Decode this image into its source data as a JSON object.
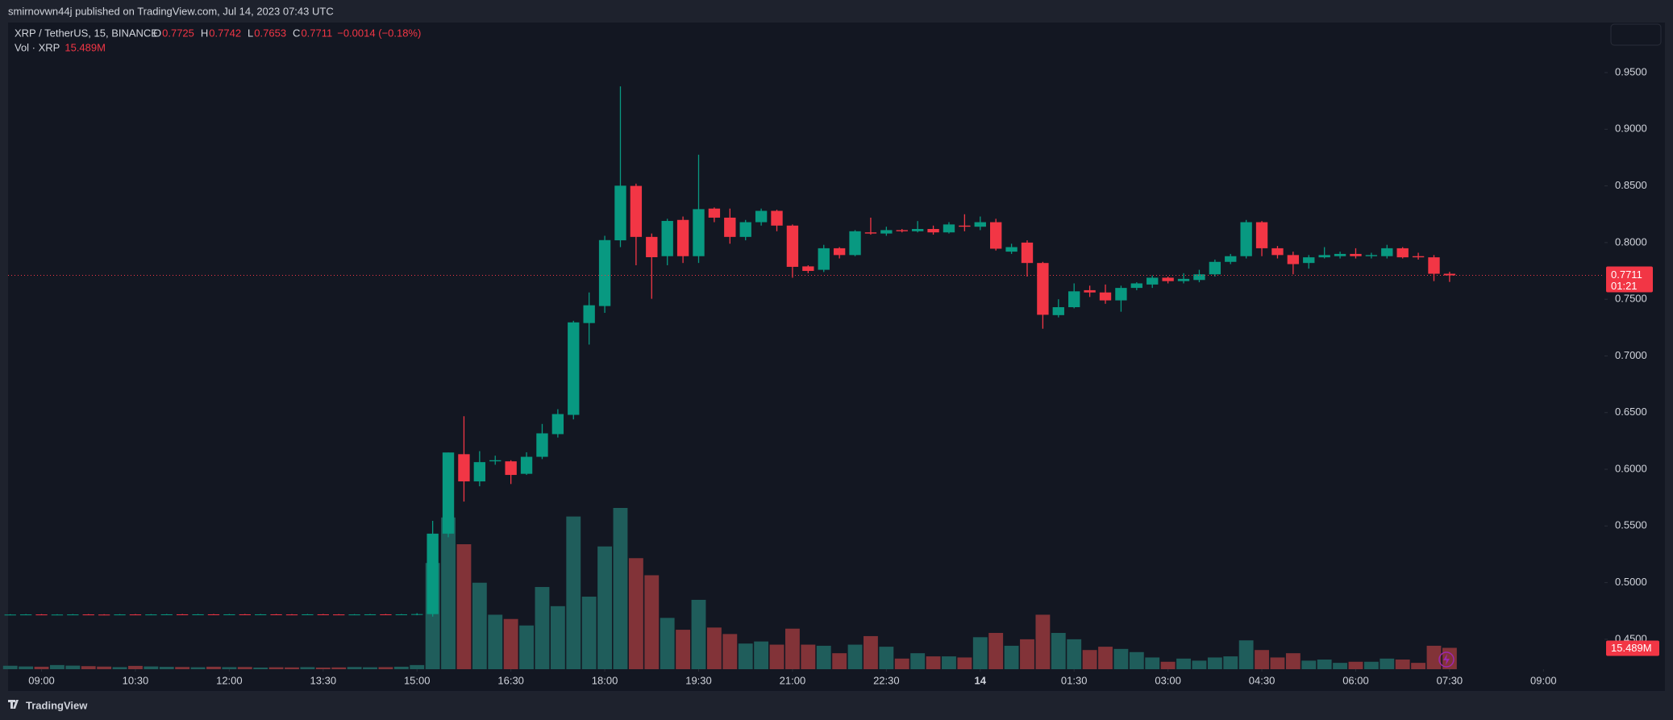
{
  "header": {
    "publisher": "smirnovwn44j published on TradingView.com, Jul 14, 2023 07:43 UTC"
  },
  "footer": {
    "brand": "TradingView"
  },
  "chart_data": {
    "type": "candlestick",
    "symbol": "XRP / TetherUS, 15, BINANCE",
    "ohlc_letters": [
      "O",
      "H",
      "L",
      "C"
    ],
    "change": "−0.0014 (−0.18%)",
    "volume_title": "Vol · XRP",
    "volume_label": "15.489M",
    "countdown": "01:21",
    "up_color": "#089981",
    "down_color": "#f23645",
    "volume_up_color": "#1f5d5b",
    "volume_down_color": "#823338",
    "open": [
      0.4717,
      0.4718,
      0.4719,
      0.4717,
      0.4718,
      0.4719,
      0.4718,
      0.4717,
      0.4719,
      0.4718,
      0.4719,
      0.472,
      0.4719,
      0.472,
      0.4719,
      0.472,
      0.4718,
      0.472,
      0.4719,
      0.4718,
      0.472,
      0.4719,
      0.4718,
      0.4719,
      0.472,
      0.4718,
      0.472,
      0.4722,
      0.5432,
      0.6133,
      0.5893,
      0.607,
      0.607,
      0.596,
      0.611,
      0.631,
      0.648,
      0.729,
      0.744,
      0.802,
      0.85,
      0.805,
      0.788,
      0.82,
      0.788,
      0.83,
      0.822,
      0.805,
      0.818,
      0.828,
      0.815,
      0.779,
      0.776,
      0.795,
      0.789,
      0.809,
      0.808,
      0.811,
      0.81,
      0.812,
      0.809,
      0.815,
      0.814,
      0.818,
      0.792,
      0.8,
      0.782,
      0.736,
      0.743,
      0.758,
      0.756,
      0.749,
      0.76,
      0.763,
      0.769,
      0.766,
      0.767,
      0.772,
      0.783,
      0.788,
      0.818,
      0.795,
      0.789,
      0.782,
      0.787,
      0.788,
      0.79,
      0.788,
      0.788,
      0.795,
      0.788,
      0.787,
      0.7725
    ],
    "high": [
      0.4721,
      0.4722,
      0.4722,
      0.4721,
      0.4722,
      0.4722,
      0.4721,
      0.4722,
      0.4722,
      0.4722,
      0.4723,
      0.4723,
      0.4723,
      0.4723,
      0.4723,
      0.4723,
      0.4723,
      0.4723,
      0.4722,
      0.4723,
      0.4723,
      0.4722,
      0.4722,
      0.4723,
      0.4723,
      0.4723,
      0.473,
      0.5545,
      0.6148,
      0.6468,
      0.616,
      0.612,
      0.608,
      0.615,
      0.64,
      0.653,
      0.731,
      0.756,
      0.806,
      0.9378,
      0.852,
      0.808,
      0.821,
      0.823,
      0.8775,
      0.831,
      0.83,
      0.82,
      0.83,
      0.829,
      0.816,
      0.78,
      0.798,
      0.796,
      0.811,
      0.822,
      0.814,
      0.812,
      0.819,
      0.815,
      0.818,
      0.825,
      0.823,
      0.821,
      0.799,
      0.802,
      0.783,
      0.75,
      0.764,
      0.762,
      0.763,
      0.762,
      0.765,
      0.771,
      0.77,
      0.773,
      0.776,
      0.785,
      0.79,
      0.82,
      0.819,
      0.797,
      0.792,
      0.789,
      0.796,
      0.792,
      0.795,
      0.791,
      0.798,
      0.796,
      0.791,
      0.789,
      0.7742
    ],
    "low": [
      0.4714,
      0.4715,
      0.4714,
      0.4714,
      0.4715,
      0.4715,
      0.4714,
      0.4714,
      0.4715,
      0.4715,
      0.4716,
      0.4716,
      0.4716,
      0.4716,
      0.4716,
      0.4715,
      0.4715,
      0.4716,
      0.4715,
      0.4715,
      0.4716,
      0.4715,
      0.4715,
      0.4716,
      0.4715,
      0.4715,
      0.4712,
      0.47,
      0.54,
      0.5715,
      0.585,
      0.604,
      0.587,
      0.595,
      0.609,
      0.628,
      0.644,
      0.71,
      0.738,
      0.796,
      0.78,
      0.7504,
      0.78,
      0.782,
      0.782,
      0.818,
      0.799,
      0.802,
      0.815,
      0.81,
      0.769,
      0.773,
      0.774,
      0.786,
      0.788,
      0.807,
      0.806,
      0.809,
      0.809,
      0.807,
      0.808,
      0.81,
      0.811,
      0.793,
      0.79,
      0.77,
      0.724,
      0.734,
      0.742,
      0.752,
      0.746,
      0.739,
      0.758,
      0.76,
      0.764,
      0.764,
      0.765,
      0.77,
      0.781,
      0.786,
      0.788,
      0.786,
      0.772,
      0.777,
      0.786,
      0.786,
      0.786,
      0.786,
      0.786,
      0.786,
      0.785,
      0.766,
      0.7653
    ],
    "close": [
      0.4718,
      0.4719,
      0.4717,
      0.4718,
      0.4719,
      0.4718,
      0.4717,
      0.4719,
      0.4718,
      0.4719,
      0.472,
      0.4719,
      0.472,
      0.4719,
      0.472,
      0.4718,
      0.472,
      0.4719,
      0.4718,
      0.472,
      0.4719,
      0.4718,
      0.4719,
      0.472,
      0.4718,
      0.472,
      0.4722,
      0.5432,
      0.6148,
      0.5893,
      0.6063,
      0.608,
      0.595,
      0.611,
      0.6317,
      0.6487,
      0.7296,
      0.7447,
      0.8022,
      0.8502,
      0.805,
      0.7871,
      0.8191,
      0.788,
      0.8295,
      0.822,
      0.805,
      0.818,
      0.828,
      0.815,
      0.7786,
      0.775,
      0.795,
      0.789,
      0.81,
      0.808,
      0.811,
      0.81,
      0.812,
      0.809,
      0.816,
      0.814,
      0.818,
      0.7946,
      0.796,
      0.782,
      0.7363,
      0.743,
      0.757,
      0.756,
      0.749,
      0.76,
      0.764,
      0.769,
      0.766,
      0.768,
      0.772,
      0.783,
      0.788,
      0.818,
      0.795,
      0.789,
      0.781,
      0.787,
      0.789,
      0.79,
      0.788,
      0.789,
      0.795,
      0.787,
      0.787,
      0.7725,
      0.7711
    ],
    "volume": [
      2.5,
      2,
      1.8,
      3,
      2.6,
      2.2,
      1.9,
      1.5,
      2.4,
      2,
      1.7,
      1.6,
      1.4,
      1.8,
      1.5,
      1.6,
      1.2,
      1.4,
      1.3,
      1.5,
      1.2,
      1.3,
      1.6,
      1.4,
      1.5,
      1.8,
      3,
      77,
      110,
      90.6,
      62.7,
      39.5,
      36.4,
      31.7,
      59.6,
      45.7,
      110.7,
      52.6,
      89,
      116.9,
      80.5,
      68.1,
      37.2,
      28.6,
      50.3,
      30.2,
      25.5,
      18.6,
      20.1,
      17.8,
      29.4,
      17.8,
      17,
      11.6,
      17.8,
      24,
      16.3,
      7.7,
      11.6,
      9.3,
      9.3,
      8.5,
      23.2,
      26.3,
      17,
      21.7,
      39.5,
      26.3,
      21.7,
      13.9,
      16.3,
      14.7,
      12.4,
      8.5,
      5.4,
      7.7,
      6.2,
      8.5,
      9.3,
      20.9,
      13.9,
      8.5,
      11.6,
      6.2,
      7,
      4.6,
      5.4,
      5.4,
      7.7,
      7,
      4.6,
      17,
      15.489
    ],
    "ylim": [
      0.4236,
      0.9934
    ],
    "yticks": [
      {
        "value": 0.45,
        "label": "0.4500"
      },
      {
        "value": 0.5,
        "label": "0.5000"
      },
      {
        "value": 0.55,
        "label": "0.5500"
      },
      {
        "value": 0.6,
        "label": "0.6000"
      },
      {
        "value": 0.65,
        "label": "0.6500"
      },
      {
        "value": 0.7,
        "label": "0.7000"
      },
      {
        "value": 0.75,
        "label": "0.7500"
      },
      {
        "value": 0.8,
        "label": "0.8000"
      },
      {
        "value": 0.85,
        "label": "0.8500"
      },
      {
        "value": 0.9,
        "label": "0.9000"
      },
      {
        "value": 0.95,
        "label": "0.9500"
      }
    ],
    "xlim": [
      -0.14,
      101.9
    ],
    "xticks": [
      {
        "value": 2,
        "label": "09:00"
      },
      {
        "value": 8,
        "label": "10:30"
      },
      {
        "value": 14,
        "label": "12:00"
      },
      {
        "value": 20,
        "label": "13:30"
      },
      {
        "value": 26,
        "label": "15:00"
      },
      {
        "value": 32,
        "label": "16:30"
      },
      {
        "value": 38,
        "label": "18:00"
      },
      {
        "value": 44,
        "label": "19:30"
      },
      {
        "value": 50,
        "label": "21:00"
      },
      {
        "value": 56,
        "label": "22:30"
      },
      {
        "value": 62,
        "label": "14"
      },
      {
        "value": 68,
        "label": "01:30"
      },
      {
        "value": 74,
        "label": "03:00"
      },
      {
        "value": 80,
        "label": "04:30"
      },
      {
        "value": 86,
        "label": "06:00"
      },
      {
        "value": 92,
        "label": "07:30"
      },
      {
        "value": 98,
        "label": "09:00"
      }
    ]
  }
}
